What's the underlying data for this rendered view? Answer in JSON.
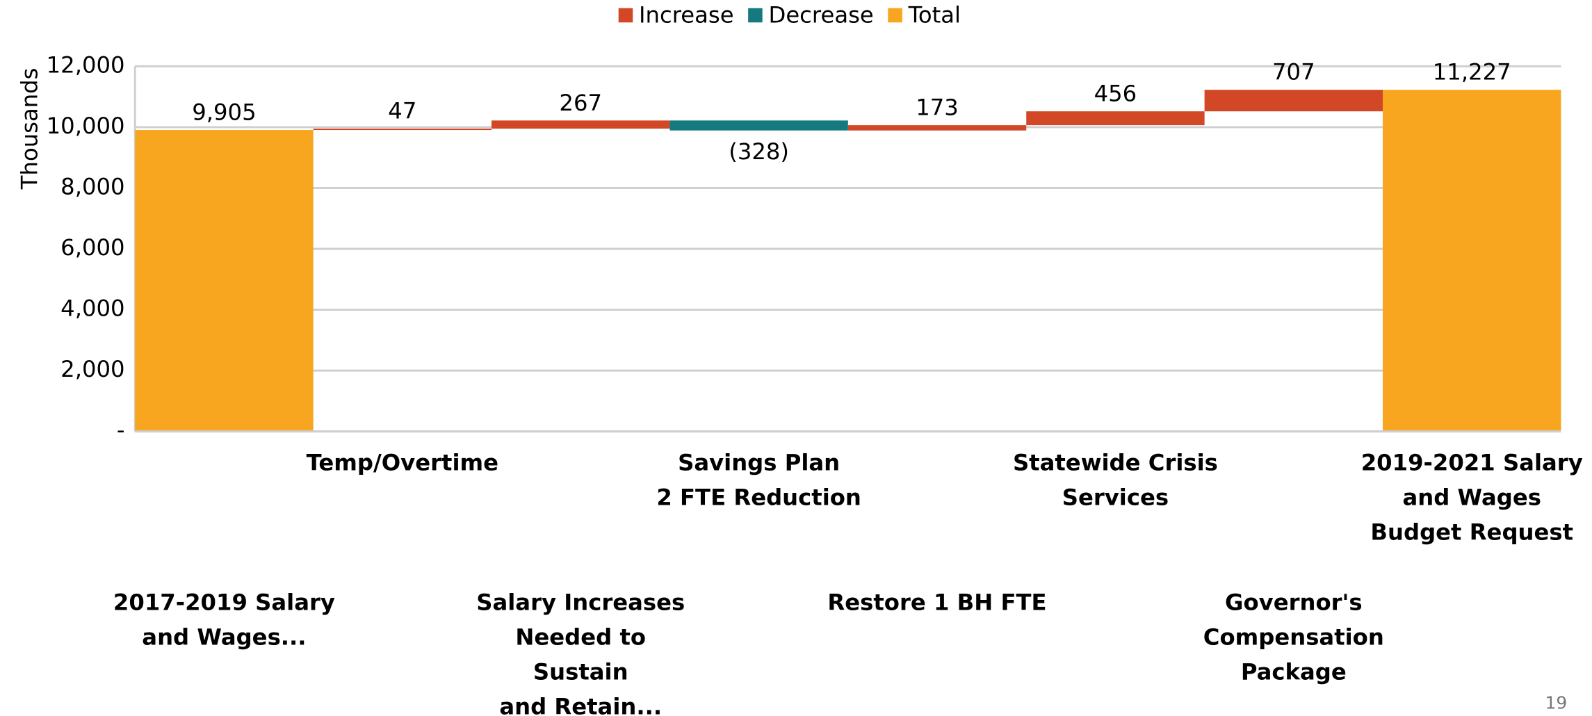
{
  "chart_data": {
    "type": "waterfall",
    "y_label": "Thousands",
    "categories": [
      "2017-2019 Salary\nand Wages...",
      "Temp/Overtime",
      "Salary Increases\nNeeded to\nSustain\nand Retain...",
      "Savings Plan\n2 FTE Reduction",
      "Restore 1 BH FTE",
      "Statewide Crisis\nServices",
      "Governor's\nCompensation\nPackage",
      "2019-2021 Salary\nand Wages\nBudget Request"
    ],
    "values": [
      9905,
      47,
      267,
      -328,
      173,
      456,
      707,
      11227
    ],
    "value_labels": [
      "9,905",
      "47",
      "267",
      "(328)",
      "173",
      "456",
      "707",
      "11,227"
    ],
    "kinds": [
      "Total",
      "Increase",
      "Increase",
      "Decrease",
      "Increase",
      "Increase",
      "Increase",
      "Total"
    ],
    "series": [
      {
        "name": "Increase",
        "color": "#d24726"
      },
      {
        "name": "Decrease",
        "color": "#147a80"
      },
      {
        "name": "Total",
        "color": "#f8a51f"
      }
    ],
    "ylim": [
      0,
      12000
    ],
    "yticks": [
      {
        "value": 0,
        "label": "-"
      },
      {
        "value": 2000,
        "label": "2,000"
      },
      {
        "value": 4000,
        "label": "4,000"
      },
      {
        "value": 6000,
        "label": "6,000"
      },
      {
        "value": 8000,
        "label": "8,000"
      },
      {
        "value": 10000,
        "label": "10,000"
      },
      {
        "value": 12000,
        "label": "12,000"
      }
    ],
    "grid": true,
    "page_number": "19"
  }
}
